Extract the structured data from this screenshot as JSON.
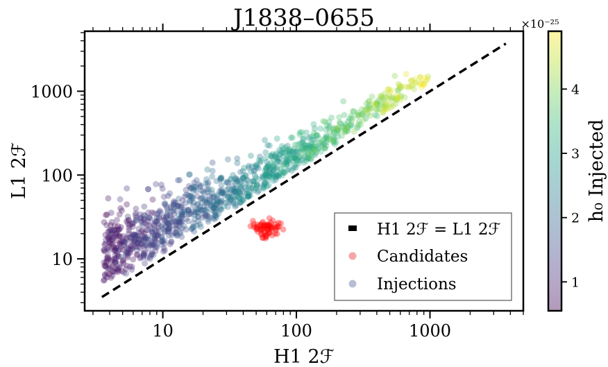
{
  "chart_data": {
    "type": "scatter",
    "title": "J1838–0655",
    "xlabel": "H1 2ℱ",
    "ylabel": "L1 2ℱ",
    "xscale": "log",
    "yscale": "log",
    "xlim": [
      2.6,
      5000
    ],
    "ylim": [
      2.4,
      5200
    ],
    "xticks": [
      {
        "value": 10,
        "label": "10"
      },
      {
        "value": 100,
        "label": "100"
      },
      {
        "value": 1000,
        "label": "1000"
      }
    ],
    "yticks": [
      {
        "value": 10,
        "label": "10"
      },
      {
        "value": 100,
        "label": "100"
      },
      {
        "value": 1000,
        "label": "1000"
      }
    ],
    "reference_line": {
      "name": "H1 2ℱ = L1 2ℱ",
      "x": [
        3.5,
        3700
      ],
      "y": [
        3.5,
        3700
      ],
      "style": "dashed",
      "color": "#000000"
    },
    "legend": {
      "placement": "lower-right",
      "entries": [
        {
          "label": "H1 2ℱ = L1 2ℱ",
          "marker": "dash",
          "color": "#000000"
        },
        {
          "label": "Candidates",
          "marker": "circle",
          "color": "#f08080"
        },
        {
          "label": "Injections",
          "marker": "circle",
          "color": "#a7acc9"
        }
      ]
    },
    "colorbar": {
      "label": "h₀ Injected",
      "exponent_label": "×10⁻²⁵",
      "ticks": [
        1,
        2,
        3,
        4
      ],
      "range": [
        0.55,
        4.9
      ],
      "colormap": [
        "#440154",
        "#482878",
        "#3e4989",
        "#31688e",
        "#26828e",
        "#1f9e89",
        "#35b779",
        "#6ece58",
        "#b5de2b",
        "#fde725"
      ]
    },
    "series": [
      {
        "name": "Candidates",
        "color": "#ff0000",
        "cluster": {
          "x_center": 60,
          "y_center": 23,
          "x_spread": 0.06,
          "y_spread": 0.06,
          "count": 65
        }
      },
      {
        "name": "Injections",
        "band": {
          "x_min": 3.6,
          "x_max": 1050,
          "y_offset_factor": 1.6,
          "y_spread_low": 0.5,
          "y_spread_high": 0.12,
          "count": 1300
        },
        "h0_range": [
          0.6,
          4.8
        ]
      }
    ]
  }
}
